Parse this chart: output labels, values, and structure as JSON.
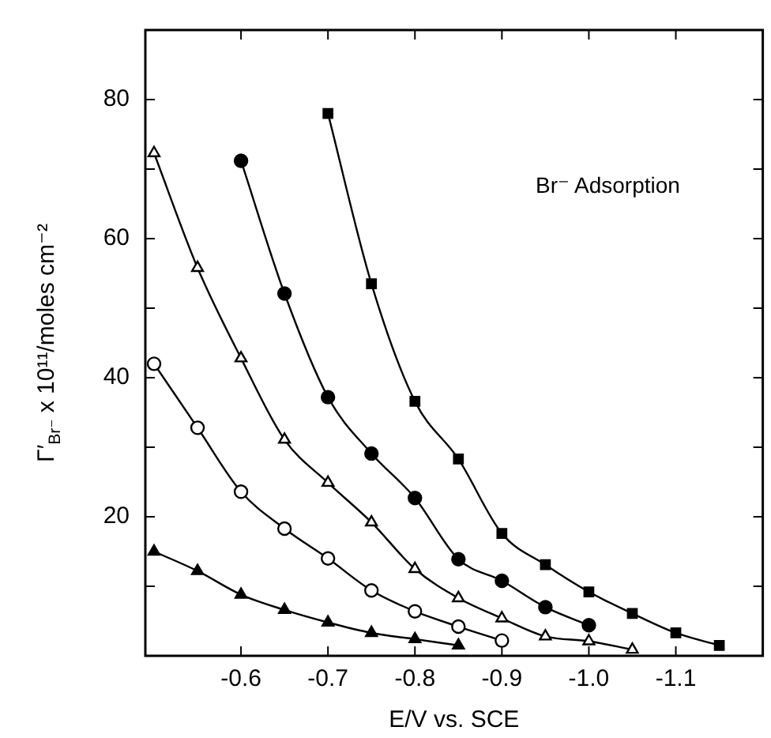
{
  "chart_data": {
    "type": "line",
    "xlabel": "E/V vs. SCE",
    "ylabel": "Γ′$_{Br⁻}$ x 10¹¹/moles cm⁻²",
    "annotations": [
      "Br⁻ Adsorption"
    ],
    "xlim": [
      -0.49,
      -1.2
    ],
    "ylim": [
      0,
      90
    ],
    "xticks": [
      -0.6,
      -0.7,
      -0.8,
      -0.9,
      {
        "value": -1.0,
        "label": "-1.0"
      },
      -1.1
    ],
    "yticks": [
      {
        "value": 10,
        "label": null
      },
      20,
      {
        "value": 30,
        "label": null
      },
      40,
      {
        "value": 50,
        "label": null
      },
      60,
      {
        "value": 70,
        "label": null
      },
      80
    ],
    "grid": false,
    "legend": false,
    "line_style": "solid",
    "series": [
      {
        "color": "#000000",
        "marker": "square",
        "x": [
          -0.7,
          -0.75,
          -0.8,
          -0.85,
          -0.9,
          -0.95,
          -1.0,
          -1.05,
          -1.1,
          -1.15
        ],
        "values": [
          78,
          53.5,
          36.6,
          28.3,
          17.6,
          13.1,
          9.2,
          6.1,
          3.3,
          1.5
        ]
      },
      {
        "color": "#000000",
        "marker": "circle",
        "x": [
          -0.6,
          -0.65,
          -0.7,
          -0.75,
          -0.8,
          -0.85,
          -0.9,
          -0.95,
          -1.0
        ],
        "values": [
          71.2,
          52.1,
          37.2,
          29.1,
          22.7,
          13.9,
          10.8,
          7.0,
          4.4
        ]
      },
      {
        "color": "#000000",
        "marker": "triangle-open",
        "x": [
          -0.5,
          -0.55,
          -0.6,
          -0.65,
          -0.7,
          -0.75,
          -0.8,
          -0.85,
          -0.9,
          -0.95,
          -1.0,
          -1.05
        ],
        "values": [
          72.3,
          55.8,
          42.8,
          31.1,
          24.9,
          19.2,
          12.5,
          8.3,
          5.4,
          2.8,
          2.1,
          0.9
        ]
      },
      {
        "color": "#000000",
        "marker": "circle-open",
        "x": [
          -0.5,
          -0.55,
          -0.6,
          -0.65,
          -0.7,
          -0.75,
          -0.8,
          -0.85,
          -0.9
        ],
        "values": [
          42.0,
          32.8,
          23.6,
          18.3,
          14.0,
          9.4,
          6.4,
          4.2,
          2.2
        ]
      },
      {
        "color": "#000000",
        "marker": "triangle",
        "x": [
          -0.5,
          -0.55,
          -0.6,
          -0.65,
          -0.7,
          -0.75,
          -0.8,
          -0.85
        ],
        "values": [
          15.0,
          12.2,
          8.8,
          6.6,
          4.8,
          3.3,
          2.4,
          1.5
        ]
      }
    ]
  }
}
